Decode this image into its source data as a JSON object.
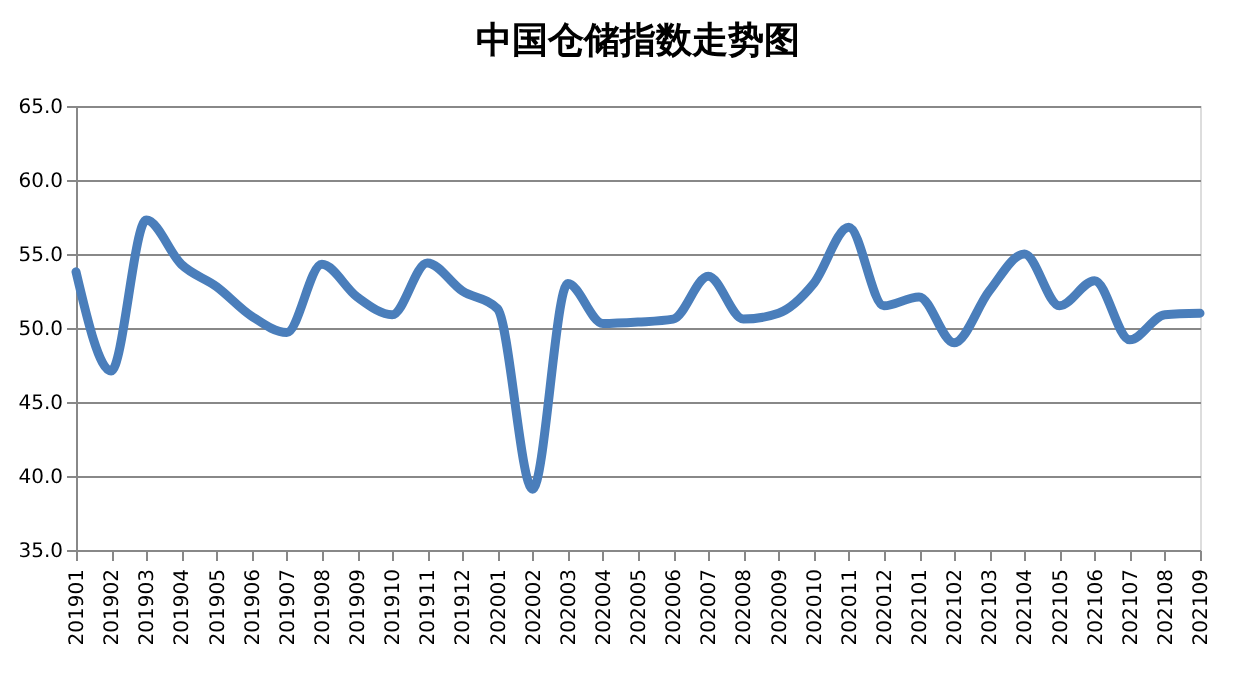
{
  "chart_data": {
    "type": "line",
    "title": "中国仓储指数走势图",
    "categories": [
      "201901",
      "201902",
      "201903",
      "201904",
      "201905",
      "201906",
      "201907",
      "201908",
      "201909",
      "201910",
      "201911",
      "201912",
      "202001",
      "202002",
      "202003",
      "202004",
      "202005",
      "202006",
      "202007",
      "202008",
      "202009",
      "202010",
      "202011",
      "202012",
      "202101",
      "202102",
      "202103",
      "202104",
      "202105",
      "202106",
      "202107",
      "202108",
      "202109"
    ],
    "series": [
      {
        "color": "#4a7ebb",
        "values": [
          53.8,
          47.1,
          57.3,
          54.3,
          52.8,
          50.8,
          49.7,
          54.3,
          52.1,
          50.9,
          54.4,
          52.5,
          51.3,
          39.1,
          53.0,
          50.3,
          50.4,
          50.6,
          53.5,
          50.6,
          51.0,
          53.0,
          56.8,
          51.5,
          52.1,
          49.0,
          52.5,
          55.0,
          51.5,
          53.2,
          49.2,
          50.9,
          51.0
        ]
      }
    ],
    "ylim": [
      35,
      65
    ],
    "yticks": [
      {
        "value": 35,
        "label": "35.0"
      },
      {
        "value": 40,
        "label": "40.0"
      },
      {
        "value": 45,
        "label": "45.0"
      },
      {
        "value": 50,
        "label": "50.0"
      },
      {
        "value": 55,
        "label": "55.0"
      },
      {
        "value": 60,
        "label": "60.0"
      },
      {
        "value": 65,
        "label": "65.0"
      }
    ],
    "grid": "y",
    "marker": "none",
    "line_style": "solid"
  }
}
